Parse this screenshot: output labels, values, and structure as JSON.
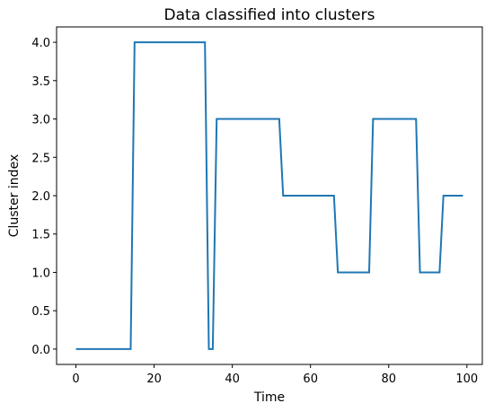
{
  "chart_data": {
    "type": "line",
    "title": "Data classified into clusters",
    "xlabel": "Time",
    "ylabel": "Cluster index",
    "color": "#1f77b4",
    "x": [
      0,
      1,
      2,
      3,
      4,
      5,
      6,
      7,
      8,
      9,
      10,
      11,
      12,
      13,
      14,
      15,
      16,
      17,
      18,
      19,
      20,
      21,
      22,
      23,
      24,
      25,
      26,
      27,
      28,
      29,
      30,
      31,
      32,
      33,
      34,
      35,
      36,
      37,
      38,
      39,
      40,
      41,
      42,
      43,
      44,
      45,
      46,
      47,
      48,
      49,
      50,
      51,
      52,
      53,
      54,
      55,
      56,
      57,
      58,
      59,
      60,
      61,
      62,
      63,
      64,
      65,
      66,
      67,
      68,
      69,
      70,
      71,
      72,
      73,
      74,
      75,
      76,
      77,
      78,
      79,
      80,
      81,
      82,
      83,
      84,
      85,
      86,
      87,
      88,
      89,
      90,
      91,
      92,
      93,
      94,
      95,
      96,
      97,
      98,
      99
    ],
    "values": [
      0,
      0,
      0,
      0,
      0,
      0,
      0,
      0,
      0,
      0,
      0,
      0,
      0,
      0,
      0,
      4,
      4,
      4,
      4,
      4,
      4,
      4,
      4,
      4,
      4,
      4,
      4,
      4,
      4,
      4,
      4,
      4,
      4,
      4,
      0,
      0,
      3,
      3,
      3,
      3,
      3,
      3,
      3,
      3,
      3,
      3,
      3,
      3,
      3,
      3,
      3,
      3,
      3,
      2,
      2,
      2,
      2,
      2,
      2,
      2,
      2,
      2,
      2,
      2,
      2,
      2,
      2,
      1,
      1,
      1,
      1,
      1,
      1,
      1,
      1,
      1,
      3,
      3,
      3,
      3,
      3,
      3,
      3,
      3,
      3,
      3,
      3,
      3,
      1,
      1,
      1,
      1,
      1,
      1,
      2,
      2,
      2,
      2,
      2,
      2
    ],
    "xlim": [
      -4.95,
      103.95
    ],
    "xticks": [
      0,
      20,
      40,
      60,
      80,
      100
    ],
    "ylim": [
      -0.2,
      4.2
    ],
    "yticks": [
      {
        "value": 0,
        "label": "0.0"
      },
      {
        "value": 0.5,
        "label": "0.5"
      },
      {
        "value": 1,
        "label": "1.0"
      },
      {
        "value": 1.5,
        "label": "1.5"
      },
      {
        "value": 2,
        "label": "2.0"
      },
      {
        "value": 2.5,
        "label": "2.5"
      },
      {
        "value": 3,
        "label": "3.0"
      },
      {
        "value": 3.5,
        "label": "3.5"
      },
      {
        "value": 4,
        "label": "4.0"
      }
    ]
  }
}
